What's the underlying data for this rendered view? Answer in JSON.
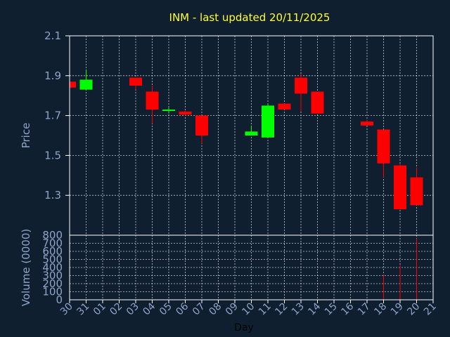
{
  "title": "INM - last updated 20/11/2025",
  "colors": {
    "background": "#0f1f30",
    "title": "#ffff33",
    "axis_text": "#8fa4c8",
    "up": "#00ff00",
    "down": "#ff0000",
    "grid": "#ffffff"
  },
  "chart_data": [
    {
      "type": "candlestick",
      "ylabel": "Price",
      "ylim": [
        1.1,
        2.1
      ],
      "yticks": [
        "2.1",
        "1.9",
        "1.7",
        "1.5",
        "1.3"
      ],
      "grid": true,
      "x_categories": [
        "30",
        "31",
        "01",
        "02",
        "03",
        "04",
        "05",
        "06",
        "07",
        "08",
        "09",
        "10",
        "11",
        "12",
        "13",
        "14",
        "15",
        "16",
        "17",
        "18",
        "19",
        "20",
        "21"
      ],
      "candles": [
        {
          "x": "30",
          "open": 1.87,
          "close": 1.84,
          "high": 1.87,
          "low": 1.84
        },
        {
          "x": "31",
          "open": 1.83,
          "close": 1.88,
          "high": 1.93,
          "low": 1.83
        },
        {
          "x": "03",
          "open": 1.89,
          "close": 1.85,
          "high": 1.89,
          "low": 1.83
        },
        {
          "x": "04",
          "open": 1.82,
          "close": 1.73,
          "high": 1.85,
          "low": 1.66
        },
        {
          "x": "05",
          "open": 1.725,
          "close": 1.73,
          "high": 1.74,
          "low": 1.71
        },
        {
          "x": "06",
          "open": 1.72,
          "close": 1.705,
          "high": 1.725,
          "low": 1.7
        },
        {
          "x": "07",
          "open": 1.7,
          "close": 1.6,
          "high": 1.7,
          "low": 1.56
        },
        {
          "x": "10",
          "open": 1.6,
          "close": 1.62,
          "high": 1.65,
          "low": 1.6
        },
        {
          "x": "11",
          "open": 1.59,
          "close": 1.75,
          "high": 1.76,
          "low": 1.59
        },
        {
          "x": "12",
          "open": 1.76,
          "close": 1.73,
          "high": 1.76,
          "low": 1.73
        },
        {
          "x": "13",
          "open": 1.89,
          "close": 1.81,
          "high": 1.91,
          "low": 1.72
        },
        {
          "x": "14",
          "open": 1.82,
          "close": 1.71,
          "high": 1.82,
          "low": 1.71
        },
        {
          "x": "17",
          "open": 1.67,
          "close": 1.65,
          "high": 1.68,
          "low": 1.65
        },
        {
          "x": "18",
          "open": 1.63,
          "close": 1.46,
          "high": 1.63,
          "low": 1.39
        },
        {
          "x": "19",
          "open": 1.45,
          "close": 1.23,
          "high": 1.46,
          "low": 1.23
        },
        {
          "x": "20",
          "open": 1.39,
          "close": 1.25,
          "high": 1.44,
          "low": 1.25
        }
      ]
    },
    {
      "type": "bar",
      "ylabel": "Volume (0000)",
      "xlabel": "Day",
      "ylim": [
        0,
        800
      ],
      "yticks": [
        "800",
        "700",
        "600",
        "500",
        "400",
        "300",
        "200",
        "100",
        "0"
      ],
      "grid": true,
      "categories": [
        "30",
        "31",
        "01",
        "02",
        "03",
        "04",
        "05",
        "06",
        "07",
        "08",
        "09",
        "10",
        "11",
        "12",
        "13",
        "14",
        "15",
        "16",
        "17",
        "18",
        "19",
        "20",
        "21"
      ],
      "bars": [
        {
          "x": "18",
          "value": 310
        },
        {
          "x": "19",
          "value": 430
        },
        {
          "x": "20",
          "value": 760
        }
      ]
    }
  ]
}
